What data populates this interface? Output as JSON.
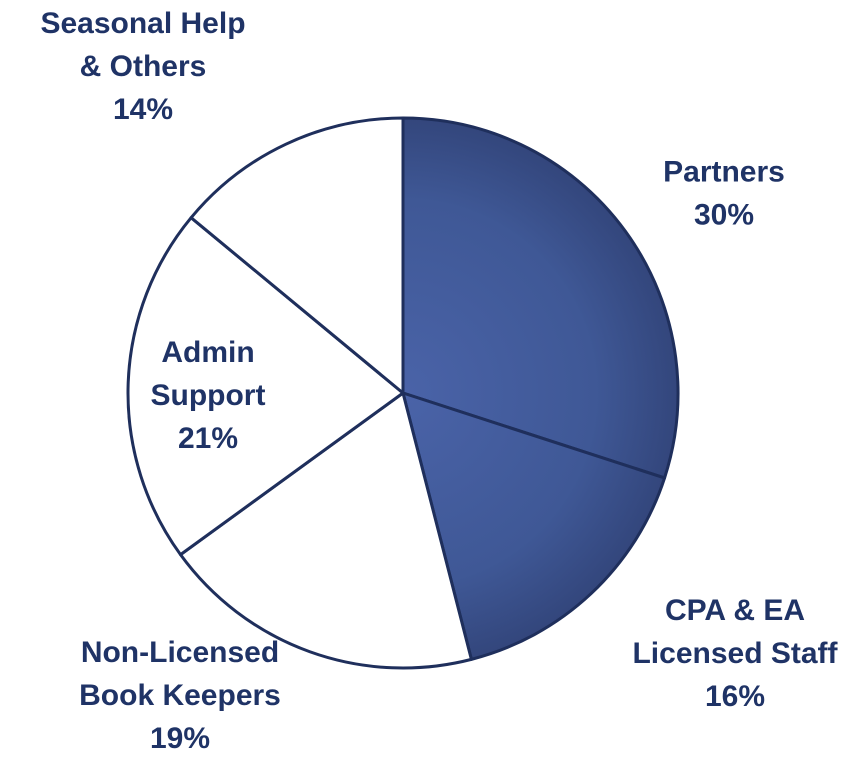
{
  "chart_data": {
    "type": "pie",
    "categories": [
      [
        "Partners"
      ],
      [
        "CPA & EA",
        "Licensed Staff"
      ],
      [
        "Non-Licensed",
        "Book Keepers"
      ],
      [
        "Admin",
        "Support"
      ],
      [
        "Seasonal Help",
        "& Others"
      ]
    ],
    "values": [
      30,
      16,
      19,
      21,
      14
    ],
    "value_labels": [
      "30%",
      "16%",
      "19%",
      "21%",
      "14%"
    ],
    "colors": [
      "#3f5896",
      "#3f5896",
      "#ffffff",
      "#ffffff",
      "#ffffff"
    ]
  }
}
